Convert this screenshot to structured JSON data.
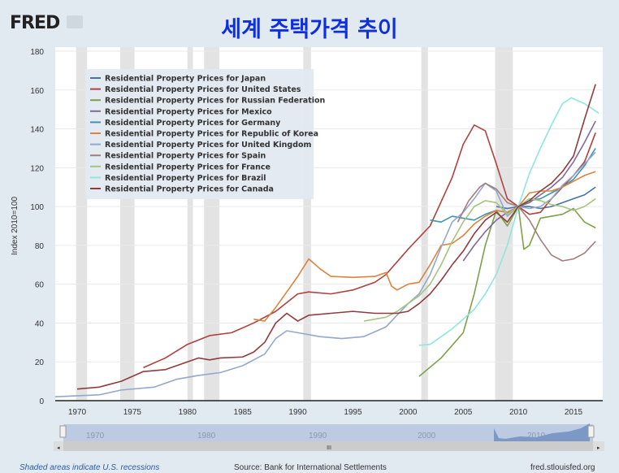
{
  "header": {
    "logo": "FRED",
    "title": "세계 주택가격 추이"
  },
  "chart_data": {
    "type": "line",
    "title": "세계 주택가격 추이",
    "ylabel": "Index 2010=100",
    "xlabel": "",
    "ylim": [
      0,
      180
    ],
    "xlim": [
      1968,
      2017.6
    ],
    "yticks": [
      0,
      20,
      40,
      60,
      80,
      100,
      120,
      140,
      160,
      180
    ],
    "xticks": [
      1970,
      1975,
      1980,
      1985,
      1990,
      1995,
      2000,
      2005,
      2010,
      2015
    ],
    "grid": true,
    "legend_position": "top-left",
    "recessions": [
      [
        1969.9,
        1970.9
      ],
      [
        1973.9,
        1975.2
      ],
      [
        1980.0,
        1980.5
      ],
      [
        1981.5,
        1982.9
      ],
      [
        1990.5,
        1991.2
      ],
      [
        2001.2,
        2001.8
      ],
      [
        2007.9,
        2009.5
      ]
    ],
    "series": [
      {
        "name": "Residential Property Prices for Japan",
        "color": "#4572a7",
        "points": [
          [
            2008,
            100
          ],
          [
            2009,
            99
          ],
          [
            2010,
            100
          ],
          [
            2011,
            100
          ],
          [
            2012,
            99
          ],
          [
            2013,
            100
          ],
          [
            2014,
            102
          ],
          [
            2015,
            104
          ],
          [
            2016,
            106
          ],
          [
            2017,
            110
          ]
        ]
      },
      {
        "name": "Residential Property Prices for United States",
        "color": "#b0413e",
        "points": [
          [
            1976,
            17
          ],
          [
            1978,
            22
          ],
          [
            1980,
            29
          ],
          [
            1982,
            33.5
          ],
          [
            1984,
            35
          ],
          [
            1986,
            40
          ],
          [
            1988,
            46
          ],
          [
            1990,
            55
          ],
          [
            1991,
            56
          ],
          [
            1993,
            55
          ],
          [
            1995,
            57
          ],
          [
            1997,
            61
          ],
          [
            1998,
            65
          ],
          [
            2000,
            78
          ],
          [
            2002,
            90
          ],
          [
            2004,
            115
          ],
          [
            2005,
            132
          ],
          [
            2006,
            142
          ],
          [
            2007,
            139
          ],
          [
            2008,
            122
          ],
          [
            2009,
            104
          ],
          [
            2010,
            100
          ],
          [
            2011,
            96
          ],
          [
            2012,
            97
          ],
          [
            2013,
            104
          ],
          [
            2014,
            110
          ],
          [
            2015,
            116
          ],
          [
            2016,
            123
          ],
          [
            2017,
            138
          ]
        ]
      },
      {
        "name": "Residential Property Prices for Russian Federation",
        "color": "#7fa04a",
        "points": [
          [
            2001,
            12.5
          ],
          [
            2003,
            22
          ],
          [
            2005,
            35
          ],
          [
            2006,
            55
          ],
          [
            2007,
            80
          ],
          [
            2008,
            98
          ],
          [
            2009,
            90
          ],
          [
            2010,
            100
          ],
          [
            2010.5,
            78
          ],
          [
            2011,
            80
          ],
          [
            2012,
            94
          ],
          [
            2013,
            95
          ],
          [
            2014,
            96
          ],
          [
            2015,
            99
          ],
          [
            2016,
            92
          ],
          [
            2017,
            89
          ]
        ]
      },
      {
        "name": "Residential Property Prices for Mexico",
        "color": "#80699b",
        "points": [
          [
            2005,
            72
          ],
          [
            2006,
            80
          ],
          [
            2007,
            87
          ],
          [
            2008,
            93
          ],
          [
            2009,
            97
          ],
          [
            2010,
            100
          ],
          [
            2011,
            102
          ],
          [
            2012,
            106
          ],
          [
            2013,
            110
          ],
          [
            2014,
            115
          ],
          [
            2015,
            123
          ],
          [
            2016,
            133
          ],
          [
            2017,
            144
          ]
        ]
      },
      {
        "name": "Residential Property Prices for Germany",
        "color": "#3d96ae",
        "points": [
          [
            2002,
            93
          ],
          [
            2003,
            92
          ],
          [
            2004,
            95
          ],
          [
            2005,
            94
          ],
          [
            2006,
            93
          ],
          [
            2007,
            96
          ],
          [
            2008,
            98
          ],
          [
            2009,
            97
          ],
          [
            2010,
            100
          ],
          [
            2011,
            103
          ],
          [
            2012,
            104
          ],
          [
            2013,
            107
          ],
          [
            2014,
            110
          ],
          [
            2015,
            114
          ],
          [
            2016,
            121
          ],
          [
            2017,
            130
          ]
        ]
      },
      {
        "name": "Residential Property Prices for Republic of Korea",
        "color": "#db843d",
        "points": [
          [
            1986,
            42
          ],
          [
            1987,
            41
          ],
          [
            1988,
            48
          ],
          [
            1989,
            56
          ],
          [
            1990,
            64
          ],
          [
            1991,
            73
          ],
          [
            1992,
            68
          ],
          [
            1993,
            64
          ],
          [
            1995,
            63.5
          ],
          [
            1997,
            64
          ],
          [
            1998,
            66
          ],
          [
            1998.5,
            59
          ],
          [
            1999,
            57
          ],
          [
            2000,
            60
          ],
          [
            2001,
            61
          ],
          [
            2002,
            70
          ],
          [
            2003,
            80
          ],
          [
            2004,
            81
          ],
          [
            2005,
            85
          ],
          [
            2006,
            91
          ],
          [
            2007,
            95
          ],
          [
            2008,
            98
          ],
          [
            2009,
            97
          ],
          [
            2010,
            100
          ],
          [
            2011,
            107
          ],
          [
            2012,
            108
          ],
          [
            2013,
            108
          ],
          [
            2014,
            110
          ],
          [
            2015,
            113
          ],
          [
            2016,
            116
          ],
          [
            2017,
            118
          ]
        ]
      },
      {
        "name": "Residential Property Prices for United Kingdom",
        "color": "#92a8cd",
        "points": [
          [
            1968,
            2
          ],
          [
            1972,
            3
          ],
          [
            1974,
            5.5
          ],
          [
            1977,
            7
          ],
          [
            1979,
            11
          ],
          [
            1981,
            13
          ],
          [
            1983,
            14.5
          ],
          [
            1985,
            18
          ],
          [
            1987,
            24
          ],
          [
            1988,
            32
          ],
          [
            1989,
            36
          ],
          [
            1990,
            35
          ],
          [
            1992,
            33
          ],
          [
            1994,
            32
          ],
          [
            1996,
            33
          ],
          [
            1998,
            38
          ],
          [
            2000,
            50
          ],
          [
            2001,
            55
          ],
          [
            2002,
            65
          ],
          [
            2003,
            79
          ],
          [
            2004,
            92
          ],
          [
            2005,
            97
          ],
          [
            2006,
            104
          ],
          [
            2007,
            112
          ],
          [
            2008,
            108
          ],
          [
            2009,
            95
          ],
          [
            2010,
            100
          ],
          [
            2011,
            99
          ],
          [
            2012,
            100
          ],
          [
            2013,
            104
          ],
          [
            2014,
            111
          ],
          [
            2015,
            116
          ],
          [
            2016,
            122
          ],
          [
            2017,
            128
          ]
        ]
      },
      {
        "name": "Residential Property Prices for Spain",
        "color": "#a47d7c",
        "points": [
          [
            2004.5,
            92
          ],
          [
            2005.5,
            103
          ],
          [
            2006.5,
            110
          ],
          [
            2007,
            112
          ],
          [
            2008,
            109
          ],
          [
            2009,
            102
          ],
          [
            2010,
            100
          ],
          [
            2011,
            93
          ],
          [
            2012,
            83
          ],
          [
            2013,
            75
          ],
          [
            2014,
            72
          ],
          [
            2015,
            73
          ],
          [
            2016,
            76
          ],
          [
            2017,
            82
          ]
        ]
      },
      {
        "name": "Residential Property Prices for France",
        "color": "#a4c47f",
        "points": [
          [
            1996,
            41
          ],
          [
            1997,
            42
          ],
          [
            1998,
            43
          ],
          [
            1999,
            46
          ],
          [
            2000,
            50
          ],
          [
            2001,
            54
          ],
          [
            2002,
            60
          ],
          [
            2003,
            70
          ],
          [
            2004,
            82
          ],
          [
            2005,
            92
          ],
          [
            2006,
            100
          ],
          [
            2007,
            103
          ],
          [
            2008,
            102
          ],
          [
            2009,
            96
          ],
          [
            2010,
            100
          ],
          [
            2011,
            104
          ],
          [
            2012,
            103
          ],
          [
            2013,
            101
          ],
          [
            2014,
            100
          ],
          [
            2015,
            98
          ],
          [
            2016,
            100
          ],
          [
            2017,
            104
          ]
        ]
      },
      {
        "name": "Residential Property Prices for Brazil",
        "color": "#8ee6df",
        "points": [
          [
            2001,
            28.5
          ],
          [
            2002,
            29
          ],
          [
            2003,
            33
          ],
          [
            2004,
            37
          ],
          [
            2005,
            42
          ],
          [
            2006,
            47
          ],
          [
            2007,
            55
          ],
          [
            2008,
            65
          ],
          [
            2009,
            80
          ],
          [
            2010,
            100
          ],
          [
            2011,
            117
          ],
          [
            2012,
            130
          ],
          [
            2013,
            142
          ],
          [
            2014,
            153
          ],
          [
            2014.8,
            156
          ],
          [
            2016,
            153
          ],
          [
            2017.3,
            148
          ]
        ]
      },
      {
        "name": "Residential Property Prices for Canada",
        "color": "#913b3e",
        "points": [
          [
            1970,
            6
          ],
          [
            1972,
            7
          ],
          [
            1974,
            10
          ],
          [
            1976,
            15
          ],
          [
            1978,
            16
          ],
          [
            1980,
            20
          ],
          [
            1981,
            22
          ],
          [
            1982,
            21
          ],
          [
            1983,
            22
          ],
          [
            1985,
            22.5
          ],
          [
            1986,
            25
          ],
          [
            1987,
            30
          ],
          [
            1988,
            40
          ],
          [
            1989,
            45
          ],
          [
            1990,
            41
          ],
          [
            1991,
            44
          ],
          [
            1993,
            45
          ],
          [
            1995,
            46
          ],
          [
            1997,
            45
          ],
          [
            1999,
            45
          ],
          [
            2000,
            46
          ],
          [
            2001,
            50
          ],
          [
            2002,
            55
          ],
          [
            2003,
            62
          ],
          [
            2004,
            70
          ],
          [
            2005,
            77
          ],
          [
            2006,
            86
          ],
          [
            2007,
            93
          ],
          [
            2008,
            97
          ],
          [
            2009,
            92
          ],
          [
            2010,
            100
          ],
          [
            2011,
            103
          ],
          [
            2012,
            108
          ],
          [
            2013,
            112
          ],
          [
            2014,
            118
          ],
          [
            2015,
            126
          ],
          [
            2016,
            145
          ],
          [
            2017,
            163
          ]
        ]
      }
    ]
  },
  "navigator": {
    "labels": [
      "1970",
      "1980",
      "1990",
      "2000",
      "2010"
    ],
    "scroll_handle": "III"
  },
  "footer": {
    "recession_note": "Shaded areas indicate U.S. recessions",
    "source": "Source: Bank for International Settlements",
    "site": "fred.stlouisfed.org"
  }
}
